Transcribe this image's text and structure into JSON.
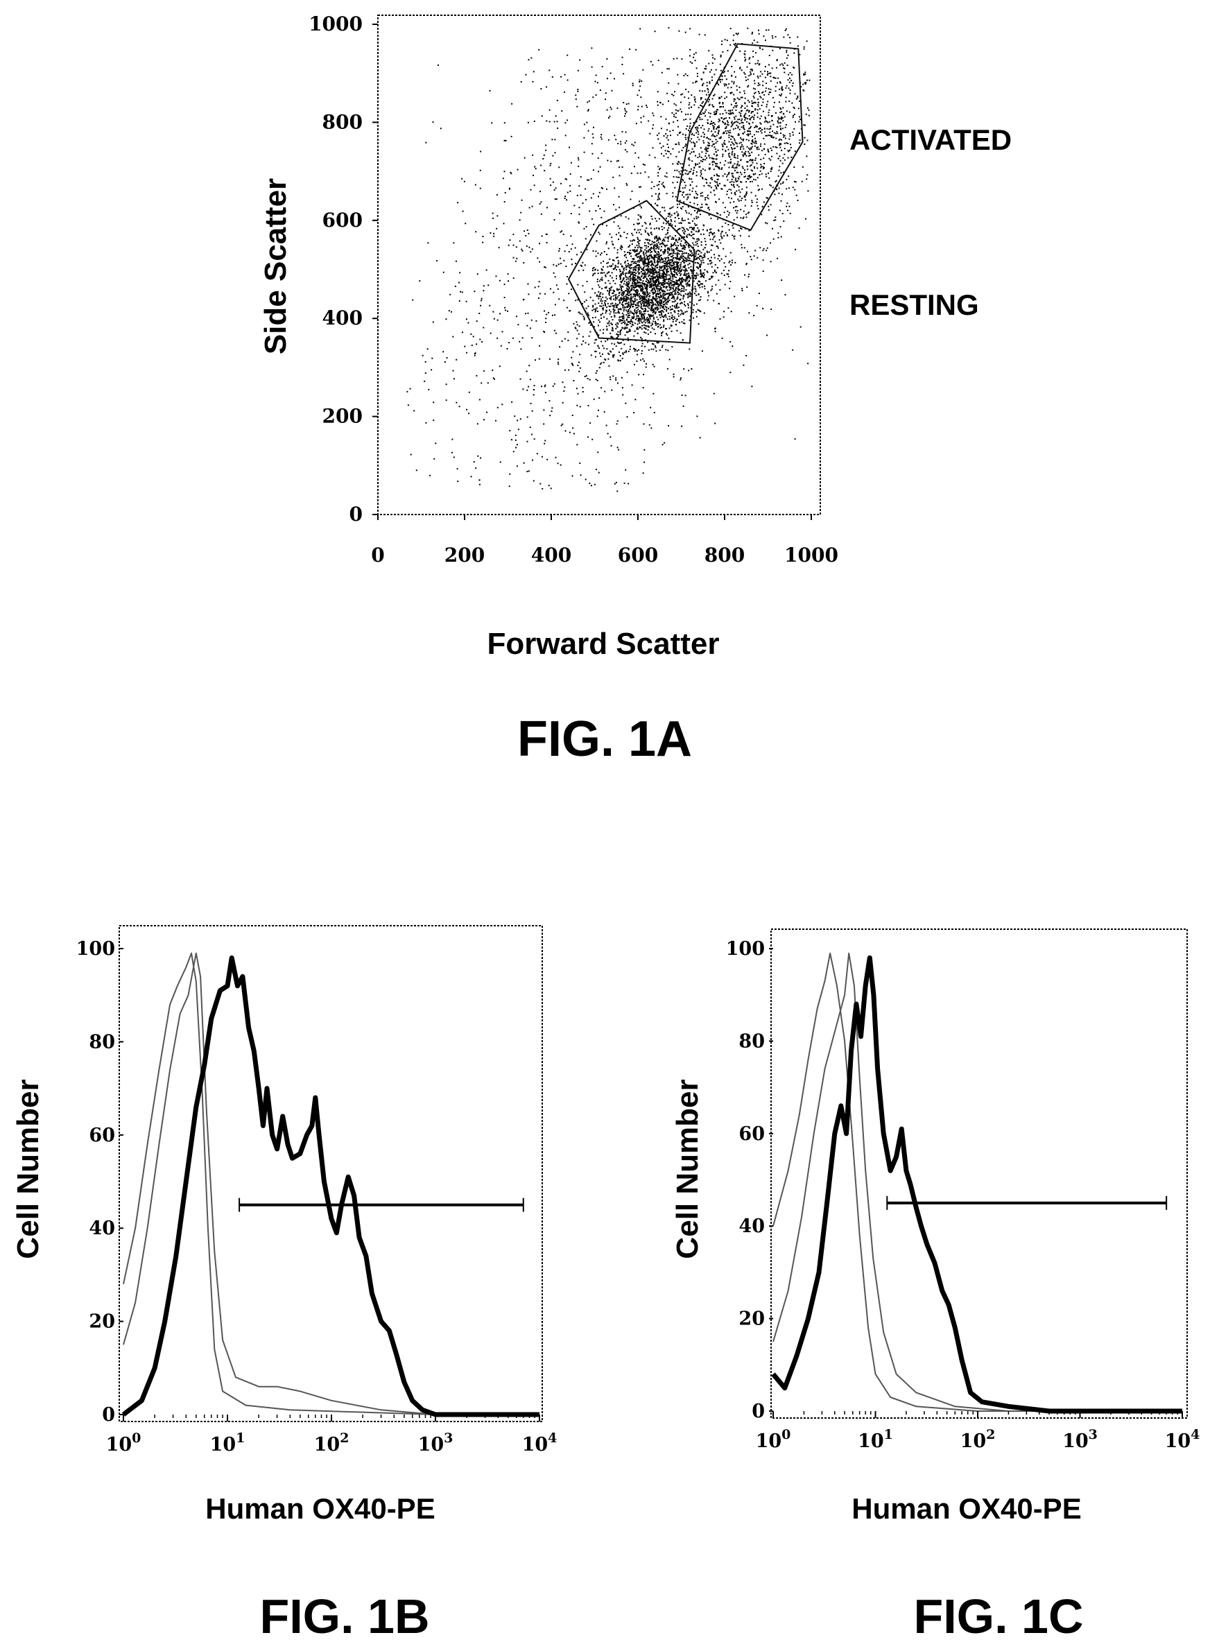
{
  "chart_data": [
    {
      "type": "scatter",
      "figure_label": "FIG. 1A",
      "xlabel": "Forward Scatter",
      "ylabel": "Side Scatter",
      "xlim": [
        0,
        1000
      ],
      "ylim": [
        0,
        1000
      ],
      "xticks": [
        "0",
        "200",
        "400",
        "600",
        "800",
        "1000"
      ],
      "yticks": [
        "0",
        "200",
        "400",
        "600",
        "800",
        "1000"
      ],
      "annotations": [
        "ACTIVATED",
        "RESTING"
      ],
      "clusters": [
        {
          "name": "RESTING",
          "center": [
            630,
            470
          ],
          "spread": [
            65,
            55
          ],
          "count": 2600
        },
        {
          "name": "ACTIVATED",
          "center": [
            820,
            760
          ],
          "spread": [
            95,
            105
          ],
          "count": 1700
        },
        {
          "center": [
            580,
            580
          ],
          "spread": [
            210,
            230
          ],
          "count": 900
        }
      ],
      "gates": [
        {
          "name": "RESTING",
          "polygon": [
            [
              440,
              480
            ],
            [
              510,
              590
            ],
            [
              620,
              640
            ],
            [
              730,
              540
            ],
            [
              720,
              350
            ],
            [
              510,
              360
            ]
          ]
        },
        {
          "name": "ACTIVATED",
          "polygon": [
            [
              690,
              640
            ],
            [
              720,
              780
            ],
            [
              830,
              960
            ],
            [
              970,
              950
            ],
            [
              980,
              760
            ],
            [
              860,
              580
            ]
          ]
        }
      ],
      "grid": false
    },
    {
      "type": "line",
      "figure_label": "FIG. 1B",
      "xlabel": "Human OX40-PE",
      "ylabel": "Cell Number",
      "xscale": "log",
      "xlim": [
        1,
        10000
      ],
      "ylim": [
        0,
        100
      ],
      "xticks": [
        "10^0",
        "10^1",
        "10^2",
        "10^3",
        "10^4"
      ],
      "yticks": [
        "0",
        "20",
        "40",
        "60",
        "80",
        "100"
      ],
      "gate_marker": {
        "x": [
          13,
          7000
        ],
        "y": 45
      },
      "series": [
        {
          "style": "thin",
          "points": [
            [
              1,
              28
            ],
            [
              1.3,
              40
            ],
            [
              1.7,
              58
            ],
            [
              2.2,
              74
            ],
            [
              2.8,
              88
            ],
            [
              3.3,
              92
            ],
            [
              4,
              96
            ],
            [
              4.5,
              99
            ],
            [
              5,
              93
            ],
            [
              5.7,
              70
            ],
            [
              6.5,
              40
            ],
            [
              7.5,
              14
            ],
            [
              9,
              5
            ],
            [
              15,
              2
            ],
            [
              40,
              1
            ],
            [
              1000,
              0
            ],
            [
              10000,
              0
            ]
          ]
        },
        {
          "style": "thin",
          "points": [
            [
              1,
              15
            ],
            [
              1.3,
              24
            ],
            [
              1.7,
              40
            ],
            [
              2.2,
              58
            ],
            [
              2.8,
              74
            ],
            [
              3.5,
              86
            ],
            [
              4.2,
              90
            ],
            [
              5,
              99
            ],
            [
              5.5,
              94
            ],
            [
              6.3,
              65
            ],
            [
              7.5,
              35
            ],
            [
              9,
              16
            ],
            [
              12,
              8
            ],
            [
              20,
              6
            ],
            [
              30,
              6
            ],
            [
              50,
              5
            ],
            [
              100,
              3
            ],
            [
              300,
              1
            ],
            [
              1000,
              0
            ],
            [
              10000,
              0
            ]
          ]
        },
        {
          "style": "bold",
          "points": [
            [
              1,
              0
            ],
            [
              1.5,
              3
            ],
            [
              2,
              10
            ],
            [
              2.5,
              20
            ],
            [
              3.2,
              34
            ],
            [
              4,
              50
            ],
            [
              5,
              66
            ],
            [
              6,
              75
            ],
            [
              7,
              85
            ],
            [
              8.5,
              91
            ],
            [
              10,
              92
            ],
            [
              11,
              98
            ],
            [
              12.5,
              92
            ],
            [
              14,
              94
            ],
            [
              16,
              83
            ],
            [
              18,
              78
            ],
            [
              20,
              70
            ],
            [
              22,
              62
            ],
            [
              24,
              70
            ],
            [
              27,
              60
            ],
            [
              30,
              57
            ],
            [
              34,
              64
            ],
            [
              38,
              58
            ],
            [
              42,
              55
            ],
            [
              50,
              56
            ],
            [
              58,
              60
            ],
            [
              65,
              62
            ],
            [
              70,
              68
            ],
            [
              76,
              60
            ],
            [
              85,
              50
            ],
            [
              100,
              42
            ],
            [
              112,
              39
            ],
            [
              125,
              45
            ],
            [
              145,
              51
            ],
            [
              165,
              47
            ],
            [
              185,
              38
            ],
            [
              215,
              34
            ],
            [
              245,
              26
            ],
            [
              300,
              20
            ],
            [
              360,
              18
            ],
            [
              420,
              13
            ],
            [
              500,
              7
            ],
            [
              600,
              3
            ],
            [
              750,
              1
            ],
            [
              1000,
              0
            ],
            [
              10000,
              0
            ]
          ]
        }
      ]
    },
    {
      "type": "line",
      "figure_label": "FIG. 1C",
      "xlabel": "Human OX40-PE",
      "ylabel": "Cell Number",
      "xscale": "log",
      "xlim": [
        1,
        10000
      ],
      "ylim": [
        0,
        100
      ],
      "xticks": [
        "10^0",
        "10^1",
        "10^2",
        "10^3",
        "10^4"
      ],
      "yticks": [
        "0",
        "20",
        "40",
        "60",
        "80",
        "100"
      ],
      "gate_marker": {
        "x": [
          13,
          7000
        ],
        "y": 45
      },
      "series": [
        {
          "style": "thin",
          "points": [
            [
              1,
              40
            ],
            [
              1.4,
              52
            ],
            [
              1.8,
              64
            ],
            [
              2.2,
              76
            ],
            [
              2.7,
              87
            ],
            [
              3.2,
              93
            ],
            [
              3.6,
              99
            ],
            [
              4.2,
              92
            ],
            [
              5,
              80
            ],
            [
              6,
              58
            ],
            [
              7,
              38
            ],
            [
              8.5,
              18
            ],
            [
              10,
              8
            ],
            [
              14,
              3
            ],
            [
              25,
              1
            ],
            [
              100,
              0
            ],
            [
              10000,
              0
            ]
          ]
        },
        {
          "style": "thin",
          "points": [
            [
              1,
              15
            ],
            [
              1.4,
              26
            ],
            [
              1.9,
              42
            ],
            [
              2.5,
              60
            ],
            [
              3.2,
              74
            ],
            [
              4,
              82
            ],
            [
              5,
              90
            ],
            [
              5.5,
              99
            ],
            [
              6.2,
              92
            ],
            [
              7,
              72
            ],
            [
              8,
              52
            ],
            [
              9.5,
              33
            ],
            [
              12,
              17
            ],
            [
              16,
              8
            ],
            [
              25,
              4
            ],
            [
              60,
              1
            ],
            [
              200,
              0
            ],
            [
              10000,
              0
            ]
          ]
        },
        {
          "style": "bold",
          "points": [
            [
              1,
              8
            ],
            [
              1.3,
              5
            ],
            [
              1.7,
              12
            ],
            [
              2.2,
              20
            ],
            [
              2.8,
              30
            ],
            [
              3.4,
              46
            ],
            [
              4,
              60
            ],
            [
              4.6,
              66
            ],
            [
              5.2,
              60
            ],
            [
              5.8,
              78
            ],
            [
              6.5,
              88
            ],
            [
              7.2,
              81
            ],
            [
              8,
              92
            ],
            [
              8.8,
              98
            ],
            [
              9.6,
              90
            ],
            [
              10.5,
              74
            ],
            [
              12,
              60
            ],
            [
              14,
              52
            ],
            [
              16,
              55
            ],
            [
              18,
              61
            ],
            [
              20,
              52
            ],
            [
              22,
              49
            ],
            [
              25,
              44
            ],
            [
              28,
              40
            ],
            [
              32,
              36
            ],
            [
              38,
              32
            ],
            [
              45,
              26
            ],
            [
              52,
              23
            ],
            [
              60,
              18
            ],
            [
              70,
              11
            ],
            [
              85,
              4
            ],
            [
              110,
              2
            ],
            [
              200,
              1
            ],
            [
              500,
              0
            ],
            [
              10000,
              0
            ]
          ]
        }
      ]
    }
  ]
}
